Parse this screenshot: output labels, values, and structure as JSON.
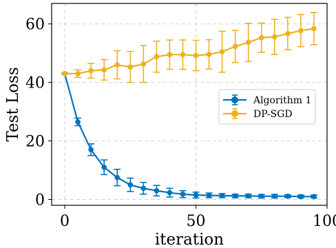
{
  "chart_data": {
    "type": "line",
    "xlabel": "iteration",
    "ylabel": "Test Loss",
    "xlim": [
      -5,
      100
    ],
    "ylim": [
      -2,
      67
    ],
    "xticks": [
      0,
      50,
      100
    ],
    "yticks": [
      0,
      20,
      40,
      60
    ],
    "grid": true,
    "grid_style": "dashed",
    "legend_position": "center-right",
    "series": [
      {
        "name": "Algorithm 1",
        "color": "#0072BD",
        "x": [
          0,
          5,
          10,
          15,
          20,
          25,
          30,
          35,
          40,
          45,
          50,
          55,
          60,
          65,
          70,
          75,
          80,
          85,
          90,
          95
        ],
        "y": [
          43,
          26.5,
          17,
          11,
          7.5,
          5,
          3.8,
          3,
          2.3,
          1.8,
          1.5,
          1.4,
          1.3,
          1.2,
          1.2,
          1.1,
          1.1,
          1.1,
          1.0,
          1.0
        ],
        "err": [
          0.3,
          1.3,
          2.0,
          2.5,
          2.8,
          2.3,
          2.0,
          1.8,
          1.5,
          1.2,
          1.0,
          0.8,
          0.7,
          0.6,
          0.6,
          0.6,
          0.6,
          0.5,
          0.5,
          0.5
        ]
      },
      {
        "name": "DP-SGD",
        "color": "#EDB120",
        "x": [
          0,
          5,
          10,
          15,
          20,
          25,
          30,
          35,
          40,
          45,
          50,
          55,
          60,
          65,
          70,
          75,
          80,
          85,
          90,
          95
        ],
        "y": [
          43,
          43,
          44,
          44.3,
          46,
          45.3,
          46.3,
          48.8,
          49.5,
          49.5,
          49.2,
          49.6,
          50.5,
          52.3,
          53.7,
          55.3,
          55.6,
          56.7,
          57.7,
          58.4
        ],
        "err": [
          0.3,
          1.3,
          2.5,
          3.5,
          4.8,
          5.3,
          6.3,
          5.3,
          5.0,
          5.0,
          5.2,
          5.0,
          7.0,
          5.5,
          6.5,
          5.0,
          6.0,
          5.5,
          5.5,
          5.5
        ]
      }
    ]
  }
}
